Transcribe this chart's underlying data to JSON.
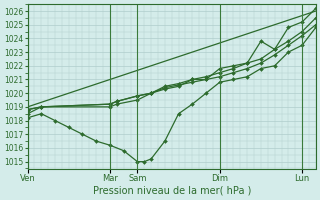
{
  "xlabel": "Pression niveau de la mer( hPa )",
  "ylim": [
    1014.5,
    1026.5
  ],
  "yticks": [
    1015,
    1016,
    1017,
    1018,
    1019,
    1020,
    1021,
    1022,
    1023,
    1024,
    1025,
    1026
  ],
  "bg_color": "#d4ecea",
  "grid_color": "#b0cdcc",
  "line_color": "#2d6b2d",
  "x_day_labels": [
    "Ven",
    "Mar",
    "Sam",
    "Dim",
    "Lun"
  ],
  "x_day_positions": [
    0,
    12,
    16,
    28,
    40
  ],
  "xlim": [
    0,
    42
  ],
  "lines": [
    {
      "x": [
        0,
        2,
        12,
        13,
        16,
        18,
        20,
        22,
        24,
        26,
        28,
        30,
        32,
        34,
        36,
        38,
        40,
        42
      ],
      "y": [
        1018.5,
        1019.0,
        1019.0,
        1019.2,
        1019.5,
        1020.0,
        1020.3,
        1020.5,
        1021.0,
        1021.0,
        1021.8,
        1022.0,
        1022.2,
        1023.8,
        1023.2,
        1024.8,
        1025.2,
        1026.2
      ]
    },
    {
      "x": [
        0,
        2,
        12,
        13,
        16,
        18,
        20,
        22,
        24,
        26,
        28,
        30,
        32,
        34,
        36,
        38,
        40,
        42
      ],
      "y": [
        1018.8,
        1019.0,
        1019.2,
        1019.4,
        1019.8,
        1020.0,
        1020.5,
        1020.7,
        1021.0,
        1021.2,
        1021.5,
        1021.8,
        1022.2,
        1022.5,
        1023.2,
        1023.8,
        1024.5,
        1025.5
      ]
    },
    {
      "x": [
        0,
        2,
        12,
        13,
        16,
        18,
        20,
        22,
        24,
        26,
        28,
        30,
        32,
        34,
        36,
        38,
        40,
        42
      ],
      "y": [
        1018.8,
        1019.0,
        1019.2,
        1019.4,
        1019.8,
        1020.0,
        1020.4,
        1020.6,
        1020.8,
        1021.0,
        1021.2,
        1021.5,
        1021.8,
        1022.2,
        1022.8,
        1023.5,
        1024.2,
        1025.0
      ]
    },
    {
      "x": [
        0,
        2,
        4,
        6,
        8,
        10,
        12,
        14,
        16,
        17,
        18,
        20,
        22,
        24,
        26,
        28,
        30,
        32,
        34,
        36,
        38,
        40,
        42
      ],
      "y": [
        1018.2,
        1018.5,
        1018.0,
        1017.5,
        1017.0,
        1016.5,
        1016.2,
        1015.8,
        1015.0,
        1015.0,
        1015.2,
        1016.5,
        1018.5,
        1019.2,
        1020.0,
        1020.8,
        1021.0,
        1021.2,
        1021.8,
        1022.0,
        1023.0,
        1023.5,
        1024.8
      ]
    },
    {
      "x": [
        0,
        42
      ],
      "y": [
        1019.0,
        1026.0
      ]
    }
  ]
}
